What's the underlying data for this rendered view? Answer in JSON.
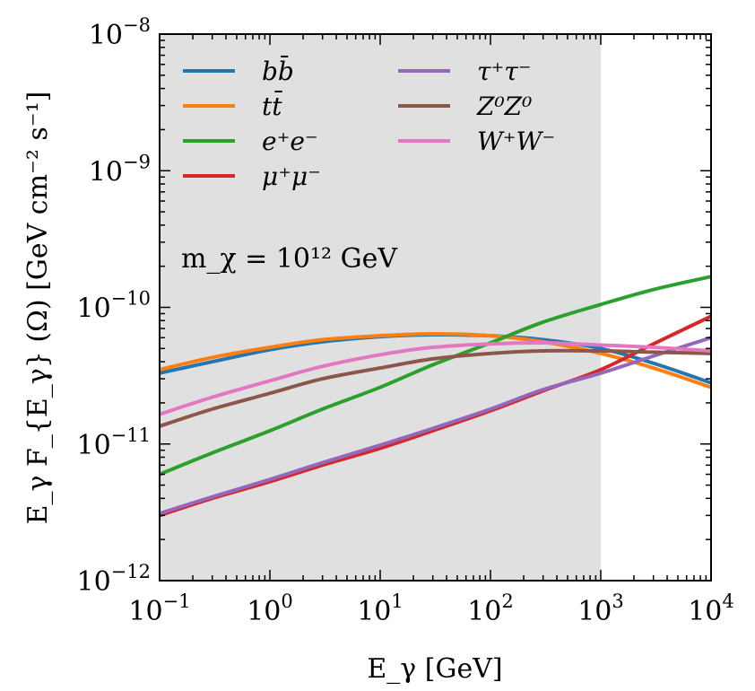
{
  "chart_data": {
    "type": "line",
    "title": "",
    "xlabel": "E_γ [GeV]",
    "ylabel": "E_γ F_{E_γ} (Ω) [GeV cm⁻² s⁻¹]",
    "xscale": "log",
    "yscale": "log",
    "xlim": [
      0.1,
      10000
    ],
    "ylim": [
      1e-12,
      1e-08
    ],
    "x_ticks": [
      {
        "value": 0.1,
        "base": "10",
        "exp": "−1"
      },
      {
        "value": 1,
        "base": "10",
        "exp": "0"
      },
      {
        "value": 10,
        "base": "10",
        "exp": "1"
      },
      {
        "value": 100,
        "base": "10",
        "exp": "2"
      },
      {
        "value": 1000,
        "base": "10",
        "exp": "3"
      },
      {
        "value": 10000,
        "base": "10",
        "exp": "4"
      }
    ],
    "y_ticks": [
      {
        "value": 1e-12,
        "base": "10",
        "exp": "−12"
      },
      {
        "value": 1e-11,
        "base": "10",
        "exp": "−11"
      },
      {
        "value": 1e-10,
        "base": "10",
        "exp": "−10"
      },
      {
        "value": 1e-09,
        "base": "10",
        "exp": "−9"
      },
      {
        "value": 1e-08,
        "base": "10",
        "exp": "−8"
      }
    ],
    "shaded_region": {
      "x_from": 0.1,
      "x_to": 1000,
      "color": "#e0e0e0"
    },
    "annotation": "m_χ = 10¹² GeV",
    "legend_position": "upper-left",
    "series": [
      {
        "name": "bb̄",
        "color": "#1f77b4",
        "x": [
          0.1,
          0.3,
          1,
          3,
          10,
          30,
          100,
          300,
          1000,
          3000,
          10000
        ],
        "values": [
          3.3e-11,
          4e-11,
          4.9e-11,
          5.6e-11,
          6.1e-11,
          6.3e-11,
          6.2e-11,
          5.8e-11,
          5e-11,
          3.9e-11,
          2.8e-11
        ]
      },
      {
        "name": "tt̄",
        "color": "#ff7f0e",
        "x": [
          0.1,
          0.3,
          1,
          3,
          10,
          30,
          100,
          300,
          1000,
          3000,
          10000
        ],
        "values": [
          3.5e-11,
          4.3e-11,
          5.1e-11,
          5.8e-11,
          6.2e-11,
          6.4e-11,
          6.2e-11,
          5.6e-11,
          4.6e-11,
          3.6e-11,
          2.6e-11
        ]
      },
      {
        "name": "e⁺e⁻",
        "color": "#2ca02c",
        "x": [
          0.1,
          0.3,
          1,
          3,
          10,
          30,
          100,
          300,
          1000,
          3000,
          10000
        ],
        "values": [
          6e-12,
          8.6e-12,
          1.25e-11,
          1.8e-11,
          2.6e-11,
          3.8e-11,
          5.5e-11,
          7.8e-11,
          1.05e-10,
          1.35e-10,
          1.68e-10
        ]
      },
      {
        "name": "μ⁺μ⁻",
        "color": "#d62728",
        "x": [
          0.1,
          0.3,
          1,
          3,
          10,
          30,
          100,
          300,
          1000,
          3000,
          10000
        ],
        "values": [
          3e-12,
          4e-12,
          5.3e-12,
          7e-12,
          9.3e-12,
          1.25e-11,
          1.75e-11,
          2.45e-11,
          3.5e-11,
          5.4e-11,
          8.6e-11
        ]
      },
      {
        "name": "τ⁺τ⁻",
        "color": "#9467bd",
        "x": [
          0.1,
          0.3,
          1,
          3,
          10,
          30,
          100,
          300,
          1000,
          3000,
          10000
        ],
        "values": [
          3.1e-12,
          4.1e-12,
          5.5e-12,
          7.3e-12,
          9.8e-12,
          1.3e-11,
          1.8e-11,
          2.5e-11,
          3.3e-11,
          4.4e-11,
          6e-11
        ]
      },
      {
        "name": "Z⁰Z⁰",
        "color": "#8c564b",
        "x": [
          0.1,
          0.3,
          1,
          3,
          10,
          30,
          100,
          300,
          1000,
          3000,
          10000
        ],
        "values": [
          1.35e-11,
          1.8e-11,
          2.35e-11,
          3e-11,
          3.6e-11,
          4.2e-11,
          4.6e-11,
          4.8e-11,
          4.8e-11,
          4.7e-11,
          4.6e-11
        ]
      },
      {
        "name": "W⁺W⁻",
        "color": "#e377c2",
        "x": [
          0.1,
          0.3,
          1,
          3,
          10,
          30,
          100,
          300,
          1000,
          3000,
          10000
        ],
        "values": [
          1.65e-11,
          2.2e-11,
          2.9e-11,
          3.7e-11,
          4.5e-11,
          5.1e-11,
          5.4e-11,
          5.5e-11,
          5.3e-11,
          5.1e-11,
          4.8e-11
        ]
      }
    ]
  }
}
